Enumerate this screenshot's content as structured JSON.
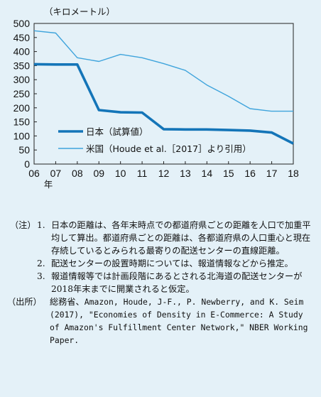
{
  "chart_data": {
    "type": "line",
    "unit_label": "（キロメートル）",
    "x_tick_labels": [
      "06",
      "07",
      "08",
      "09",
      "10",
      "11",
      "12",
      "13",
      "14",
      "15",
      "16",
      "17",
      "18"
    ],
    "x_unit_label": "年",
    "x": [
      2006,
      2007,
      2008,
      2009,
      2010,
      2011,
      2012,
      2013,
      2014,
      2015,
      2016,
      2017,
      2018
    ],
    "ylim": [
      0,
      500
    ],
    "y_ticks": [
      0,
      50,
      100,
      150,
      200,
      250,
      300,
      350,
      400,
      450,
      500
    ],
    "grid": false,
    "legend_position": "bottom-left",
    "series": [
      {
        "name": "日本（試算値）",
        "color": "#1475b8",
        "line_width": "thick",
        "values": [
          355,
          354,
          354,
          192,
          184,
          183,
          124,
          123,
          123,
          121,
          119,
          112,
          73
        ]
      },
      {
        "name": "米国（Houde et al.［2017］より引用）",
        "color": "#3fa4dc",
        "line_width": "thin",
        "values": [
          474,
          466,
          378,
          365,
          390,
          378,
          357,
          333,
          281,
          241,
          197,
          188,
          188
        ]
      }
    ]
  },
  "notes": {
    "label": "（注）",
    "items": [
      {
        "num": "1.",
        "text": "日本の距離は、各年末時点での都道府県ごとの距離を人口で加重平均して算出。都道府県ごとの距離は、各都道府県の人口重心と現在存続しているとみられる最寄りの配送センターの直線距離。"
      },
      {
        "num": "2.",
        "text": "配送センターの設置時期については、報道情報などから推定。"
      },
      {
        "num": "3.",
        "text": "報道情報等では計画段階にあるとされる北海道の配送センターが2018年末までに開業されると仮定。"
      }
    ],
    "source_label": "（出所）",
    "source_text_jp": "総務省、",
    "source_text_en": "Amazon, Houde, J-F., P. Newberry, and K. Seim (2017), \"Economies of Density in E-Commerce: A Study of Amazon's Fulfillment Center Network,\" NBER Working Paper."
  }
}
